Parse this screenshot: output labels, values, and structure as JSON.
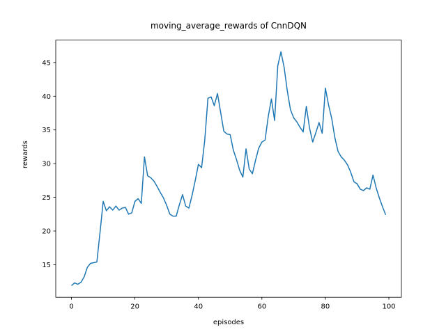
{
  "figure": {
    "background_color": "#ffffff",
    "text_color": "#000000"
  },
  "chart_data": {
    "type": "line",
    "title": "moving_average_rewards of CnnDQN",
    "xlabel": "episodes",
    "ylabel": "rewards",
    "x_ticks": [
      0,
      20,
      40,
      60,
      80,
      100
    ],
    "y_ticks": [
      15,
      20,
      25,
      30,
      35,
      40,
      45
    ],
    "xlim": [
      -4.95,
      103.95
    ],
    "ylim": [
      10.17,
      48.33
    ],
    "grid": false,
    "legend": "none",
    "line_color": "#1f77b4",
    "line_width": 1.5,
    "x_start": 0,
    "x_step": 1,
    "values": [
      11.9,
      12.3,
      12.1,
      12.4,
      13.2,
      14.6,
      15.2,
      15.3,
      15.4,
      19.8,
      24.4,
      23.0,
      23.6,
      23.1,
      23.7,
      23.1,
      23.4,
      23.5,
      22.5,
      22.7,
      24.4,
      24.8,
      24.1,
      31.0,
      28.2,
      27.9,
      27.4,
      26.6,
      25.7,
      24.9,
      23.8,
      22.5,
      22.2,
      22.2,
      23.9,
      25.4,
      23.7,
      23.4,
      25.3,
      27.5,
      29.9,
      29.4,
      33.5,
      39.7,
      39.9,
      38.6,
      40.4,
      37.6,
      34.8,
      34.4,
      34.3,
      32.0,
      30.6,
      29.0,
      28.0,
      32.2,
      29.2,
      28.5,
      30.5,
      32.3,
      33.2,
      33.5,
      37.0,
      39.6,
      36.4,
      44.5,
      46.6,
      44.3,
      40.8,
      38.0,
      36.8,
      36.2,
      35.4,
      34.7,
      38.5,
      35.3,
      33.2,
      34.6,
      36.1,
      34.5,
      41.2,
      38.7,
      36.7,
      33.8,
      31.8,
      31.0,
      30.5,
      29.8,
      28.7,
      27.3,
      27.0,
      26.2,
      26.0,
      26.4,
      26.2,
      28.3,
      26.4,
      24.9,
      23.6,
      22.4
    ]
  }
}
